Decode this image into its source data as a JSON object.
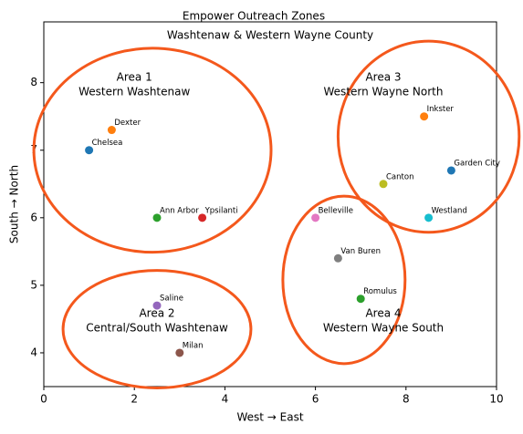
{
  "chart_data": {
    "type": "scatter",
    "title": [
      "Empower Outreach Zones",
      "Washtenaw & Western Wayne County"
    ],
    "x_label": "West → East",
    "y_label": "South → North",
    "xlim": [
      0,
      10
    ],
    "ylim": [
      3.5,
      8.9
    ],
    "xticks": [
      0,
      2,
      4,
      6,
      8,
      10
    ],
    "yticks": [
      4,
      5,
      6,
      7,
      8
    ],
    "series": [
      {
        "name": "Chelsea",
        "color": "#1f77b4",
        "x": [
          1
        ],
        "values": [
          7
        ]
      },
      {
        "name": "Dexter",
        "color": "#ff7f0e",
        "x": [
          1.5
        ],
        "values": [
          7.3
        ]
      },
      {
        "name": "Ann Arbor",
        "color": "#2ca02c",
        "x": [
          2.5
        ],
        "values": [
          6
        ]
      },
      {
        "name": "Ypsilanti",
        "color": "#d62728",
        "x": [
          3.5
        ],
        "values": [
          6
        ]
      },
      {
        "name": "Saline",
        "color": "#9467bd",
        "x": [
          2.5
        ],
        "values": [
          4.7
        ]
      },
      {
        "name": "Milan",
        "color": "#8c564b",
        "x": [
          3
        ],
        "values": [
          4
        ]
      },
      {
        "name": "Belleville",
        "color": "#e377c2",
        "x": [
          6
        ],
        "values": [
          6
        ]
      },
      {
        "name": "Van Buren",
        "color": "#7f7f7f",
        "x": [
          6.5
        ],
        "values": [
          5.4
        ]
      },
      {
        "name": "Canton",
        "color": "#bcbd22",
        "x": [
          7.5
        ],
        "values": [
          6.5
        ]
      },
      {
        "name": "Westland",
        "color": "#17becf",
        "x": [
          8.5
        ],
        "values": [
          6
        ]
      },
      {
        "name": "Garden City",
        "color": "#1f77b4",
        "x": [
          9
        ],
        "values": [
          6.7
        ]
      },
      {
        "name": "Inkster",
        "color": "#ff7f0e",
        "x": [
          8.4
        ],
        "values": [
          7.5
        ]
      },
      {
        "name": "Romulus",
        "color": "#2ca02c",
        "x": [
          7
        ],
        "values": [
          4.8
        ]
      }
    ],
    "zones": [
      {
        "label": [
          "Area 1",
          "Western Washtenaw"
        ],
        "label_x": 2,
        "label_y": 7.97,
        "x": 2.4,
        "y": 7.0,
        "width": 5.24,
        "height": 3.02
      },
      {
        "label": [
          "Area 2",
          "Central/South Washtenaw"
        ],
        "label_x": 2.5,
        "label_y": 4.47,
        "x": 2.5,
        "y": 4.35,
        "width": 4.15,
        "height": 1.74
      },
      {
        "label": [
          "Area 3",
          "Western Wayne North"
        ],
        "label_x": 7.5,
        "label_y": 7.97,
        "x": 8.5,
        "y": 7.2,
        "width": 4.0,
        "height": 2.83
      },
      {
        "label": [
          "Area 4",
          "Western Wayne South"
        ],
        "label_x": 7.5,
        "label_y": 4.47,
        "x": 6.63,
        "y": 5.08,
        "width": 2.7,
        "height": 2.48
      }
    ],
    "zone_color": "#f4581c"
  }
}
